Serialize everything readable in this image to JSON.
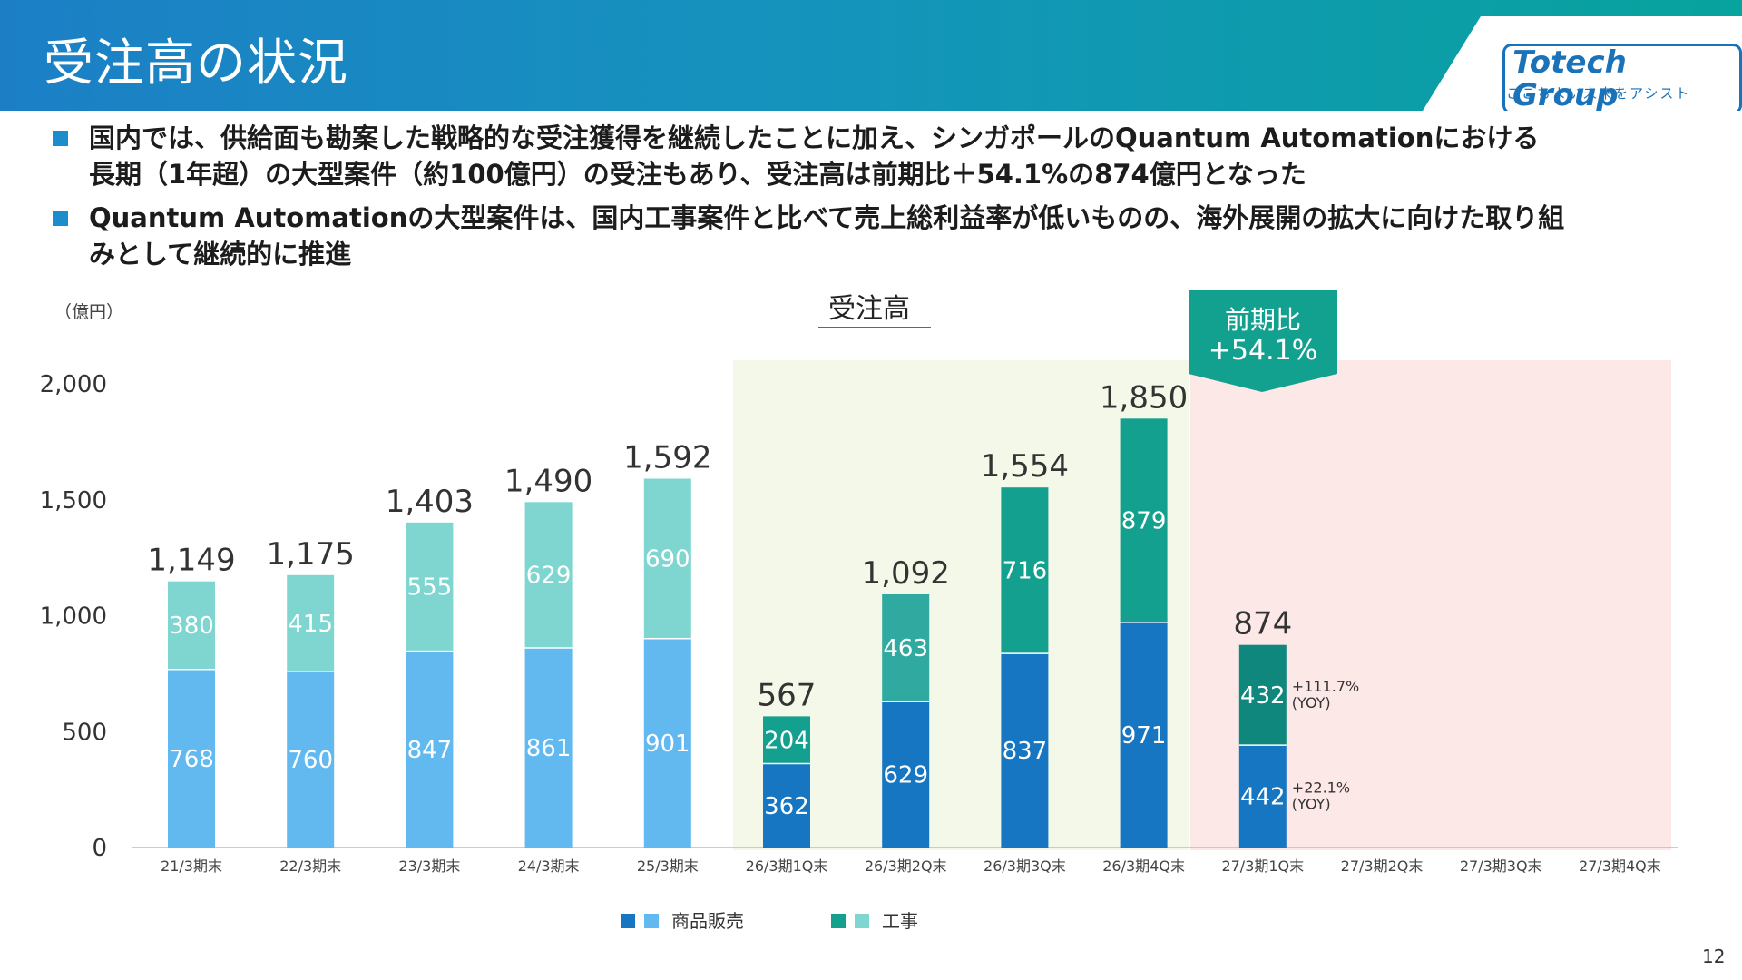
{
  "header": {
    "title": "受注高の状況"
  },
  "logo": {
    "name": "Totech Group",
    "tagline": "ここちよい未来をアシスト"
  },
  "bullets": [
    {
      "line1": "国内では、供給面も勘案した戦略的な受注獲得を継続したことに加え、シンガポールのQuantum Automationにおける",
      "line2": "長期（1年超）の大型案件（約100億円）の受注もあり、受注高は前期比＋54.1%の874億円となった"
    },
    {
      "line1": "Quantum Automationの大型案件は、国内工事案件と比べて売上総利益率が低いものの、海外展開の拡大に向けた取り組",
      "line2": "みとして継続的に推進"
    }
  ],
  "chart_data": {
    "type": "bar",
    "stacked": true,
    "title": "受注高",
    "unit": "（億円）",
    "ylim": [
      0,
      2000
    ],
    "yticks": [
      "0",
      "500",
      "1,000",
      "1,500",
      "2,000"
    ],
    "categories": [
      "21/3期末",
      "22/3期末",
      "23/3期末",
      "24/3期末",
      "25/3期末",
      "26/3期1Q末",
      "26/3期2Q末",
      "26/3期3Q末",
      "26/3期4Q末",
      "27/3期1Q末",
      "27/3期2Q末",
      "27/3期3Q末",
      "27/3期4Q末"
    ],
    "series": [
      {
        "name": "商品販売",
        "values": [
          768,
          760,
          847,
          861,
          901,
          362,
          629,
          837,
          971,
          442,
          null,
          null,
          null
        ]
      },
      {
        "name": "工事",
        "values": [
          380,
          415,
          555,
          629,
          690,
          204,
          463,
          716,
          879,
          432,
          null,
          null,
          null
        ]
      }
    ],
    "totals": [
      "1,149",
      "1,175",
      "1,403",
      "1,490",
      "1,592",
      "567",
      "1,092",
      "1,554",
      "1,850",
      "874",
      "",
      "",
      ""
    ],
    "yoy": {
      "products": "+22.1%",
      "construction": "+111.7%",
      "suffix": "(YOY)"
    },
    "callout": {
      "line1": "前期比",
      "line2": "+54.1%"
    },
    "colors": {
      "annual_products": "#62b9ef",
      "annual_construction": "#7fd6d0",
      "q_products": "#1676c2",
      "q_construction_2q": "#30aaa0",
      "q_construction": "#14a08e",
      "current_construction": "#10877d",
      "current_products": "#1676c2",
      "region_prev": "#f4f8e8",
      "region_current": "#fde8e8",
      "callout": "#12a08f"
    },
    "legend": [
      {
        "label": "商品販売",
        "colors": [
          "#1676c2",
          "#62b9ef"
        ]
      },
      {
        "label": "工事",
        "colors": [
          "#14a08e",
          "#7fd6d0"
        ]
      }
    ],
    "legend_position": "bottom-center"
  },
  "page": {
    "number": "12"
  }
}
